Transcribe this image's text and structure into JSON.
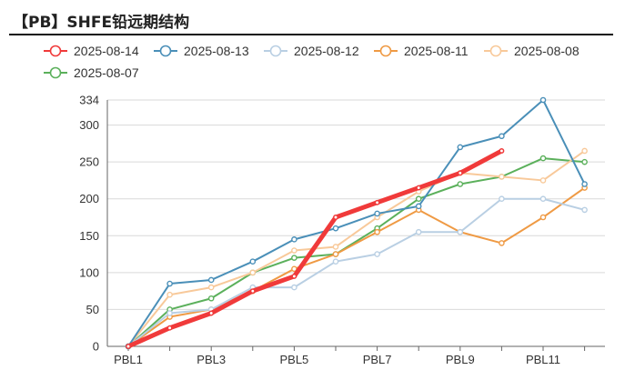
{
  "header": {
    "title": "【PB】SHFE铅远期结构"
  },
  "chart_data": {
    "type": "line",
    "title": "【PB】SHFE铅远期结构",
    "x": [
      "PBL1",
      "PBL2",
      "PBL3",
      "PBL4",
      "PBL5",
      "PBL6",
      "PBL7",
      "PBL8",
      "PBL9",
      "PBL10",
      "PBL11",
      "PBL12"
    ],
    "x_tick_labels": [
      "PBL1",
      "PBL3",
      "PBL5",
      "PBL7",
      "PBL9",
      "PBL11"
    ],
    "y_ticks": [
      0,
      50,
      100,
      150,
      200,
      250,
      300,
      334
    ],
    "ylim": [
      0,
      334
    ],
    "grid": true,
    "legend_position": "top",
    "series": [
      {
        "name": "2025-08-14",
        "color": "#f03a3a",
        "values": [
          0,
          25,
          45,
          75,
          95,
          175,
          195,
          215,
          235,
          265,
          null,
          null
        ]
      },
      {
        "name": "2025-08-13",
        "color": "#4a8fb8",
        "values": [
          0,
          85,
          90,
          115,
          145,
          160,
          180,
          190,
          270,
          285,
          334,
          220
        ]
      },
      {
        "name": "2025-08-12",
        "color": "#b9cfe3",
        "values": [
          0,
          45,
          50,
          80,
          80,
          115,
          125,
          155,
          155,
          200,
          200,
          185
        ]
      },
      {
        "name": "2025-08-11",
        "color": "#ef9a44",
        "values": [
          0,
          40,
          50,
          75,
          105,
          125,
          155,
          185,
          155,
          140,
          175,
          215
        ]
      },
      {
        "name": "2025-08-08",
        "color": "#f8c99a",
        "values": [
          0,
          70,
          80,
          100,
          130,
          135,
          175,
          210,
          235,
          230,
          225,
          265
        ]
      },
      {
        "name": "2025-08-07",
        "color": "#5bb05b",
        "values": [
          0,
          50,
          65,
          100,
          120,
          125,
          160,
          200,
          220,
          230,
          255,
          250
        ]
      }
    ]
  }
}
